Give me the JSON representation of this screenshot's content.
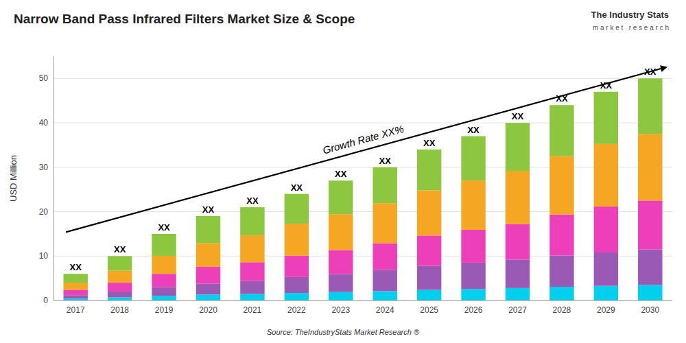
{
  "chart_data": {
    "type": "bar",
    "stacked": true,
    "title": "Narrow Band Pass Infrared Filters Market Size & Scope",
    "y_label": "USD Million",
    "source": "Source: TheIndustryStats Market Research ®",
    "logo_title": "The Industry Stats",
    "logo_subtitle": "m a r k e t   r e s e a r c h",
    "bar_label": "XX",
    "annotation": "Growth Rate XX%",
    "categories": [
      "2017",
      "2018",
      "2019",
      "2020",
      "2021",
      "2022",
      "2023",
      "2024",
      "2025",
      "2026",
      "2027",
      "2028",
      "2029",
      "2030"
    ],
    "series": [
      {
        "color": "#00CFEE",
        "values": [
          0.42,
          0.7,
          1.05,
          1.33,
          1.47,
          1.68,
          1.89,
          2.1,
          2.38,
          2.59,
          2.8,
          3.08,
          3.29,
          3.5
        ]
      },
      {
        "color": "#9B59B6",
        "values": [
          0.78,
          1.3,
          1.95,
          2.47,
          2.94,
          3.6,
          4.05,
          4.8,
          5.44,
          5.92,
          6.4,
          7.04,
          7.52,
          8
        ]
      },
      {
        "color": "#EE3FBB",
        "values": [
          1.2,
          2,
          3,
          3.8,
          4.2,
          4.8,
          5.4,
          6,
          6.8,
          7.4,
          8,
          9.24,
          10.34,
          11
        ]
      },
      {
        "color": "#F5A623",
        "values": [
          1.62,
          2.7,
          4.05,
          5.32,
          6.09,
          7.2,
          8.1,
          9,
          10.2,
          11.1,
          12,
          13.2,
          14.1,
          15
        ]
      },
      {
        "color": "#8DC63F",
        "values": [
          1.98,
          3.3,
          4.95,
          6.08,
          6.3,
          6.72,
          7.56,
          8.1,
          9.18,
          9.99,
          10.8,
          11.44,
          11.75,
          12.5
        ]
      }
    ],
    "ylim": [
      0,
      55
    ],
    "yticks": [
      0,
      10,
      20,
      30,
      40,
      50
    ],
    "grid": true
  }
}
